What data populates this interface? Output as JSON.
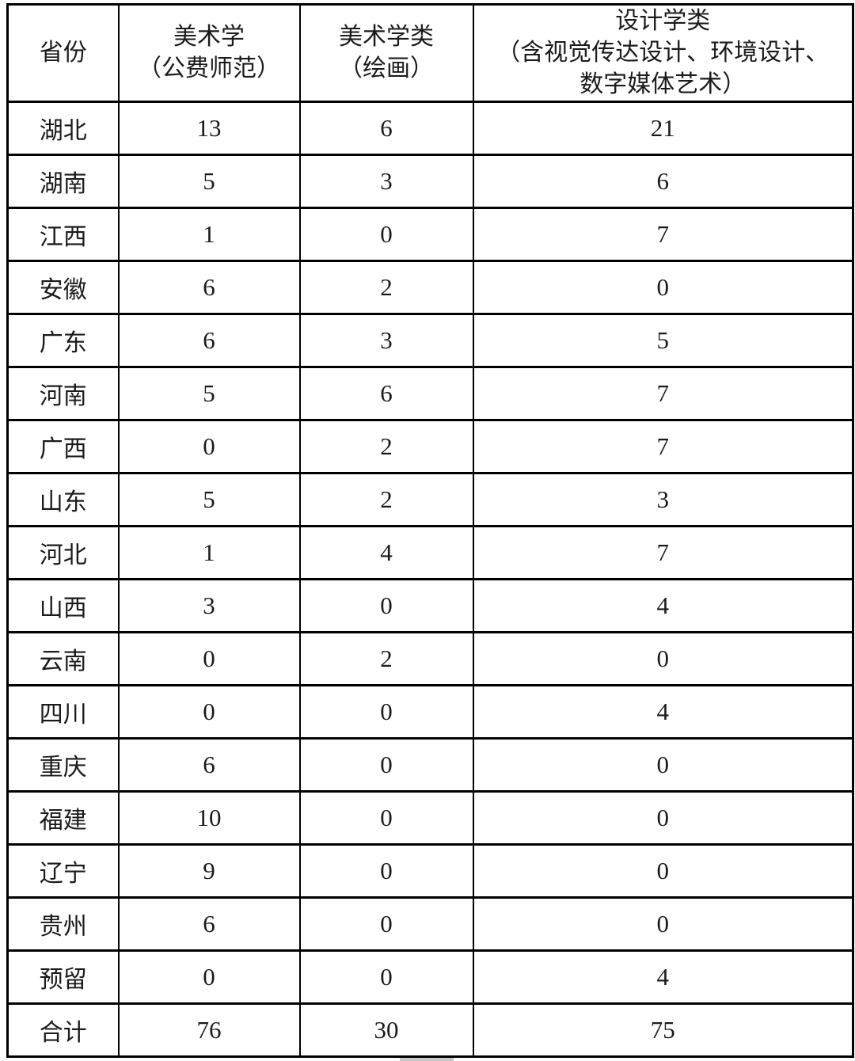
{
  "page": {
    "background": "#ffffff",
    "border_color": "#000000",
    "text_color": "#1b1b1b"
  },
  "table": {
    "header": {
      "province": "省份",
      "col_meishuxue_line1": "美术学",
      "col_meishuxue_line2": "（公费师范）",
      "col_meishuxuelei_line1": "美术学类",
      "col_meishuxuelei_line2": "（绘画）",
      "col_sheji_line1": "设计学类",
      "col_sheji_line2": "（含视觉传达设计、环境设计、",
      "col_sheji_line3": "数字媒体艺术）"
    },
    "rows": [
      {
        "cells": [
          "湖北",
          "13",
          "6",
          "21"
        ]
      },
      {
        "cells": [
          "湖南",
          "5",
          "3",
          "6"
        ]
      },
      {
        "cells": [
          "江西",
          "1",
          "0",
          "7"
        ]
      },
      {
        "cells": [
          "安徽",
          "6",
          "2",
          "0"
        ]
      },
      {
        "cells": [
          "广东",
          "6",
          "3",
          "5"
        ]
      },
      {
        "cells": [
          "河南",
          "5",
          "6",
          "7"
        ]
      },
      {
        "cells": [
          "广西",
          "0",
          "2",
          "7"
        ]
      },
      {
        "cells": [
          "山东",
          "5",
          "2",
          "3"
        ]
      },
      {
        "cells": [
          "河北",
          "1",
          "4",
          "7"
        ]
      },
      {
        "cells": [
          "山西",
          "3",
          "0",
          "4"
        ]
      },
      {
        "cells": [
          "云南",
          "0",
          "2",
          "0"
        ]
      },
      {
        "cells": [
          "四川",
          "0",
          "0",
          "4"
        ]
      },
      {
        "cells": [
          "重庆",
          "6",
          "0",
          "0"
        ]
      },
      {
        "cells": [
          "福建",
          "10",
          "0",
          "0"
        ]
      },
      {
        "cells": [
          "辽宁",
          "9",
          "0",
          "0"
        ]
      },
      {
        "cells": [
          "贵州",
          "6",
          "0",
          "0"
        ]
      },
      {
        "cells": [
          "预留",
          "0",
          "0",
          "4"
        ]
      },
      {
        "cells": [
          "合计",
          "76",
          "30",
          "75"
        ]
      }
    ]
  }
}
